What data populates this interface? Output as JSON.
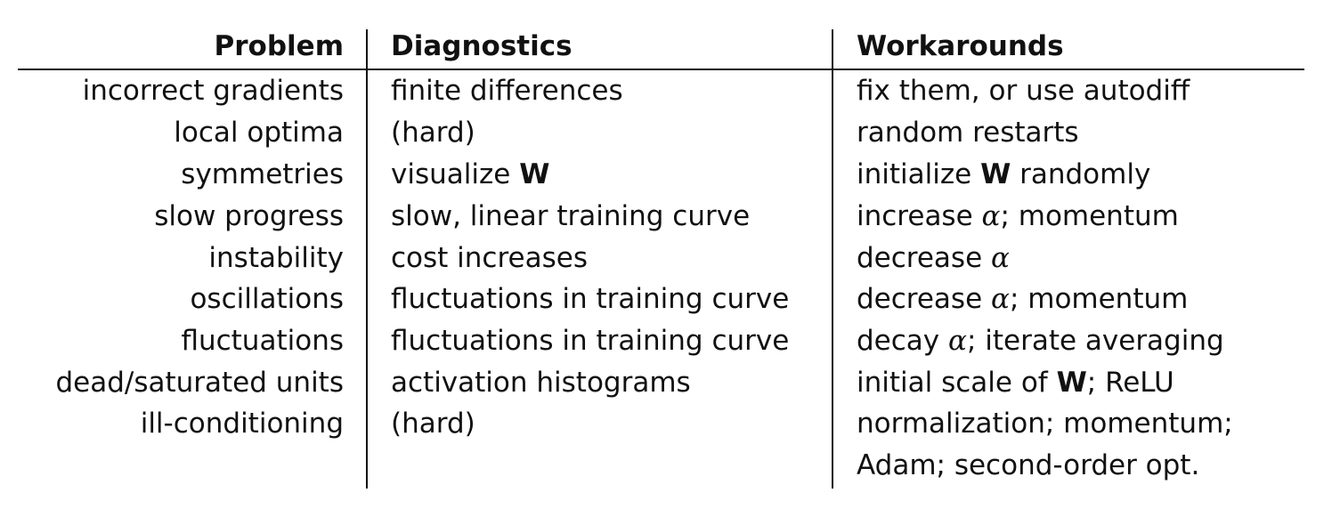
{
  "headers": {
    "problem": "Problem",
    "diagnostics": "Diagnostics",
    "workarounds": "Workarounds"
  },
  "rows": [
    {
      "problem": "incorrect gradients",
      "diagnostics": [
        "finite differences"
      ],
      "workarounds": [
        "fix them, or use autodiff"
      ]
    },
    {
      "problem": "local optima",
      "diagnostics": [
        "(hard)"
      ],
      "workarounds": [
        "random restarts"
      ]
    },
    {
      "problem": "symmetries",
      "diagnostics": [
        "visualize ",
        "W",
        ""
      ],
      "workarounds": [
        "initialize ",
        "W",
        " randomly"
      ]
    },
    {
      "problem": "slow progress",
      "diagnostics": [
        "slow, linear training curve"
      ],
      "workarounds": [
        "increase ",
        "α",
        "; momentum"
      ]
    },
    {
      "problem": "instability",
      "diagnostics": [
        "cost increases"
      ],
      "workarounds": [
        "decrease ",
        "α",
        ""
      ]
    },
    {
      "problem": "oscillations",
      "diagnostics": [
        "fluctuations in training curve"
      ],
      "workarounds": [
        "decrease ",
        "α",
        "; momentum"
      ]
    },
    {
      "problem": "fluctuations",
      "diagnostics": [
        "fluctuations in training curve"
      ],
      "workarounds": [
        "decay ",
        "α",
        "; iterate averaging"
      ]
    },
    {
      "problem": "dead/saturated units",
      "diagnostics": [
        "activation histograms"
      ],
      "workarounds": [
        "initial scale of ",
        "W",
        "; ReLU"
      ]
    },
    {
      "problem": "ill-conditioning",
      "diagnostics": [
        "(hard)"
      ],
      "workarounds": [
        "normalization; momentum;"
      ]
    },
    {
      "problem": "",
      "diagnostics": [
        ""
      ],
      "workarounds": [
        "Adam; second-order opt."
      ]
    }
  ]
}
